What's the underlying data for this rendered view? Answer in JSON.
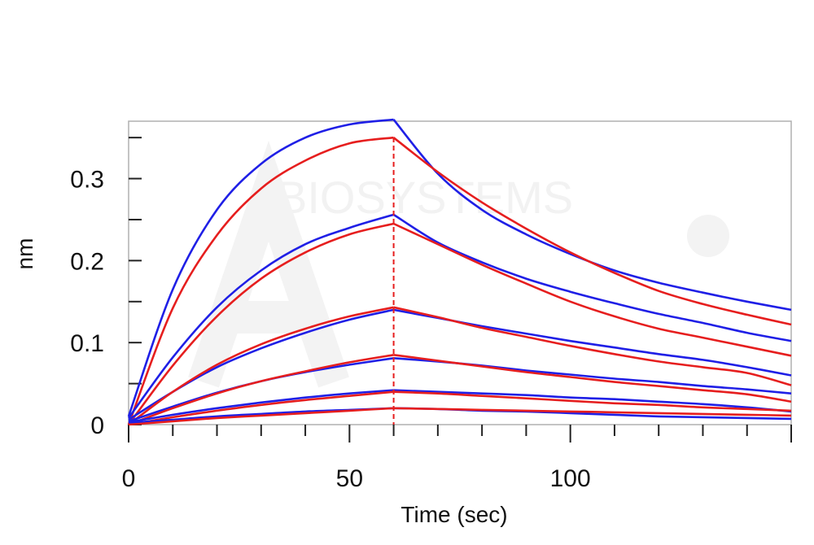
{
  "chart_data": {
    "type": "line",
    "title": "",
    "xlabel": "Time (sec)",
    "ylabel": "nm",
    "xlim": [
      0,
      150
    ],
    "ylim": [
      0,
      0.37
    ],
    "x_ticks": [
      0,
      50,
      100
    ],
    "x_tick_labels": [
      "0",
      "50",
      "100"
    ],
    "y_ticks": [
      0,
      0.1,
      0.2,
      0.3
    ],
    "y_tick_labels": [
      "0",
      "0.1",
      "0.2",
      "0.3"
    ],
    "grid": false,
    "legend": "none",
    "association_end_time": 60,
    "watermark_text": "BIOSYSTEMS",
    "colors": {
      "measured": "#1f1fe6",
      "fit": "#e61e1e",
      "frame": "#b0b0b0"
    },
    "series": [
      {
        "role": "measured",
        "color": "#1f1fe6",
        "x": [
          0,
          10,
          20,
          30,
          40,
          50,
          60,
          70,
          80,
          90,
          100,
          110,
          120,
          130,
          140,
          150
        ],
        "values": [
          0.01,
          0.165,
          0.262,
          0.318,
          0.35,
          0.366,
          0.372,
          0.306,
          0.262,
          0.232,
          0.208,
          0.188,
          0.173,
          0.161,
          0.15,
          0.14
        ]
      },
      {
        "role": "fit",
        "color": "#e61e1e",
        "x": [
          0,
          10,
          20,
          30,
          40,
          50,
          60,
          70,
          80,
          90,
          100,
          110,
          120,
          130,
          140,
          150
        ],
        "values": [
          0.0,
          0.142,
          0.231,
          0.288,
          0.322,
          0.343,
          0.35,
          0.308,
          0.271,
          0.239,
          0.21,
          0.185,
          0.163,
          0.147,
          0.134,
          0.122
        ]
      },
      {
        "role": "measured",
        "color": "#1f1fe6",
        "x": [
          0,
          10,
          20,
          30,
          40,
          50,
          60,
          70,
          80,
          90,
          100,
          110,
          120,
          130,
          140,
          150
        ],
        "values": [
          0.008,
          0.082,
          0.143,
          0.188,
          0.22,
          0.24,
          0.256,
          0.222,
          0.198,
          0.178,
          0.162,
          0.148,
          0.135,
          0.124,
          0.112,
          0.102
        ]
      },
      {
        "role": "fit",
        "color": "#e61e1e",
        "x": [
          0,
          10,
          20,
          30,
          40,
          50,
          60,
          70,
          80,
          90,
          100,
          110,
          120,
          130,
          140,
          150
        ],
        "values": [
          0.0,
          0.072,
          0.132,
          0.178,
          0.21,
          0.232,
          0.245,
          0.22,
          0.195,
          0.172,
          0.15,
          0.132,
          0.117,
          0.106,
          0.095,
          0.084
        ]
      },
      {
        "role": "measured",
        "color": "#1f1fe6",
        "x": [
          0,
          10,
          20,
          30,
          40,
          50,
          60,
          70,
          80,
          90,
          100,
          110,
          120,
          130,
          140,
          150
        ],
        "values": [
          0.006,
          0.04,
          0.07,
          0.093,
          0.112,
          0.128,
          0.14,
          0.13,
          0.12,
          0.111,
          0.102,
          0.094,
          0.086,
          0.079,
          0.07,
          0.06
        ]
      },
      {
        "role": "fit",
        "color": "#e61e1e",
        "x": [
          0,
          10,
          20,
          30,
          40,
          50,
          60,
          70,
          80,
          90,
          100,
          110,
          120,
          130,
          140,
          150
        ],
        "values": [
          0.0,
          0.04,
          0.073,
          0.098,
          0.117,
          0.132,
          0.143,
          0.131,
          0.118,
          0.107,
          0.096,
          0.086,
          0.077,
          0.07,
          0.063,
          0.048
        ]
      },
      {
        "role": "measured",
        "color": "#1f1fe6",
        "x": [
          0,
          10,
          20,
          30,
          40,
          50,
          60,
          70,
          80,
          90,
          100,
          110,
          120,
          130,
          140,
          150
        ],
        "values": [
          0.004,
          0.022,
          0.039,
          0.053,
          0.064,
          0.073,
          0.081,
          0.077,
          0.072,
          0.066,
          0.061,
          0.056,
          0.052,
          0.047,
          0.043,
          0.038
        ]
      },
      {
        "role": "fit",
        "color": "#e61e1e",
        "x": [
          0,
          10,
          20,
          30,
          40,
          50,
          60,
          70,
          80,
          90,
          100,
          110,
          120,
          130,
          140,
          150
        ],
        "values": [
          0.0,
          0.02,
          0.038,
          0.053,
          0.065,
          0.076,
          0.085,
          0.078,
          0.071,
          0.064,
          0.058,
          0.052,
          0.047,
          0.042,
          0.037,
          0.028
        ]
      },
      {
        "role": "measured",
        "color": "#1f1fe6",
        "x": [
          0,
          10,
          20,
          30,
          40,
          50,
          60,
          70,
          80,
          90,
          100,
          110,
          120,
          130,
          140,
          150
        ],
        "values": [
          0.003,
          0.012,
          0.02,
          0.027,
          0.033,
          0.038,
          0.042,
          0.04,
          0.038,
          0.036,
          0.033,
          0.031,
          0.028,
          0.025,
          0.021,
          0.016
        ]
      },
      {
        "role": "fit",
        "color": "#e61e1e",
        "x": [
          0,
          10,
          20,
          30,
          40,
          50,
          60,
          70,
          80,
          90,
          100,
          110,
          120,
          130,
          140,
          150
        ],
        "values": [
          0.0,
          0.009,
          0.017,
          0.024,
          0.03,
          0.035,
          0.04,
          0.038,
          0.035,
          0.032,
          0.029,
          0.026,
          0.024,
          0.021,
          0.019,
          0.017
        ]
      },
      {
        "role": "measured",
        "color": "#1f1fe6",
        "x": [
          0,
          10,
          20,
          30,
          40,
          50,
          60,
          70,
          80,
          90,
          100,
          110,
          120,
          130,
          140,
          150
        ],
        "values": [
          0.002,
          0.006,
          0.01,
          0.013,
          0.016,
          0.018,
          0.02,
          0.019,
          0.017,
          0.016,
          0.014,
          0.012,
          0.01,
          0.009,
          0.008,
          0.007
        ]
      },
      {
        "role": "fit",
        "color": "#e61e1e",
        "x": [
          0,
          10,
          20,
          30,
          40,
          50,
          60,
          70,
          80,
          90,
          100,
          110,
          120,
          130,
          140,
          150
        ],
        "values": [
          0.0,
          0.004,
          0.008,
          0.011,
          0.014,
          0.017,
          0.02,
          0.019,
          0.018,
          0.017,
          0.016,
          0.015,
          0.014,
          0.013,
          0.012,
          0.011
        ]
      }
    ]
  }
}
